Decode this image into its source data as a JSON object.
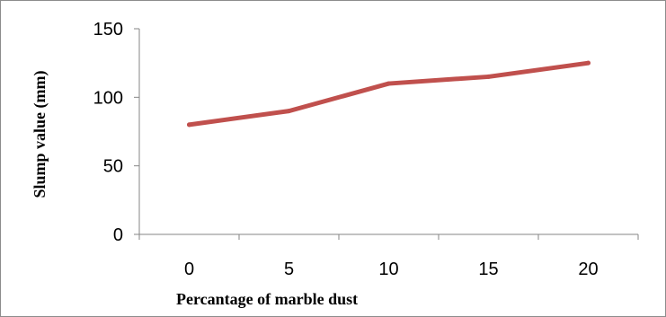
{
  "chart_data": {
    "type": "line",
    "title": "",
    "xlabel": "Percantage of marble dust",
    "ylabel": "Slump value (mm)",
    "categories": [
      "0",
      "5",
      "10",
      "15",
      "20"
    ],
    "x": [
      0,
      5,
      10,
      15,
      20
    ],
    "series": [
      {
        "values": [
          80,
          90,
          110,
          115,
          125
        ]
      }
    ],
    "ylim": [
      0,
      150
    ],
    "yticks": [
      "0",
      "50",
      "100",
      "150"
    ],
    "grid": false,
    "legend": "none",
    "colors": {
      "line": "#c0504d",
      "axis": "#868686",
      "frame": "#8c8c8c"
    }
  }
}
